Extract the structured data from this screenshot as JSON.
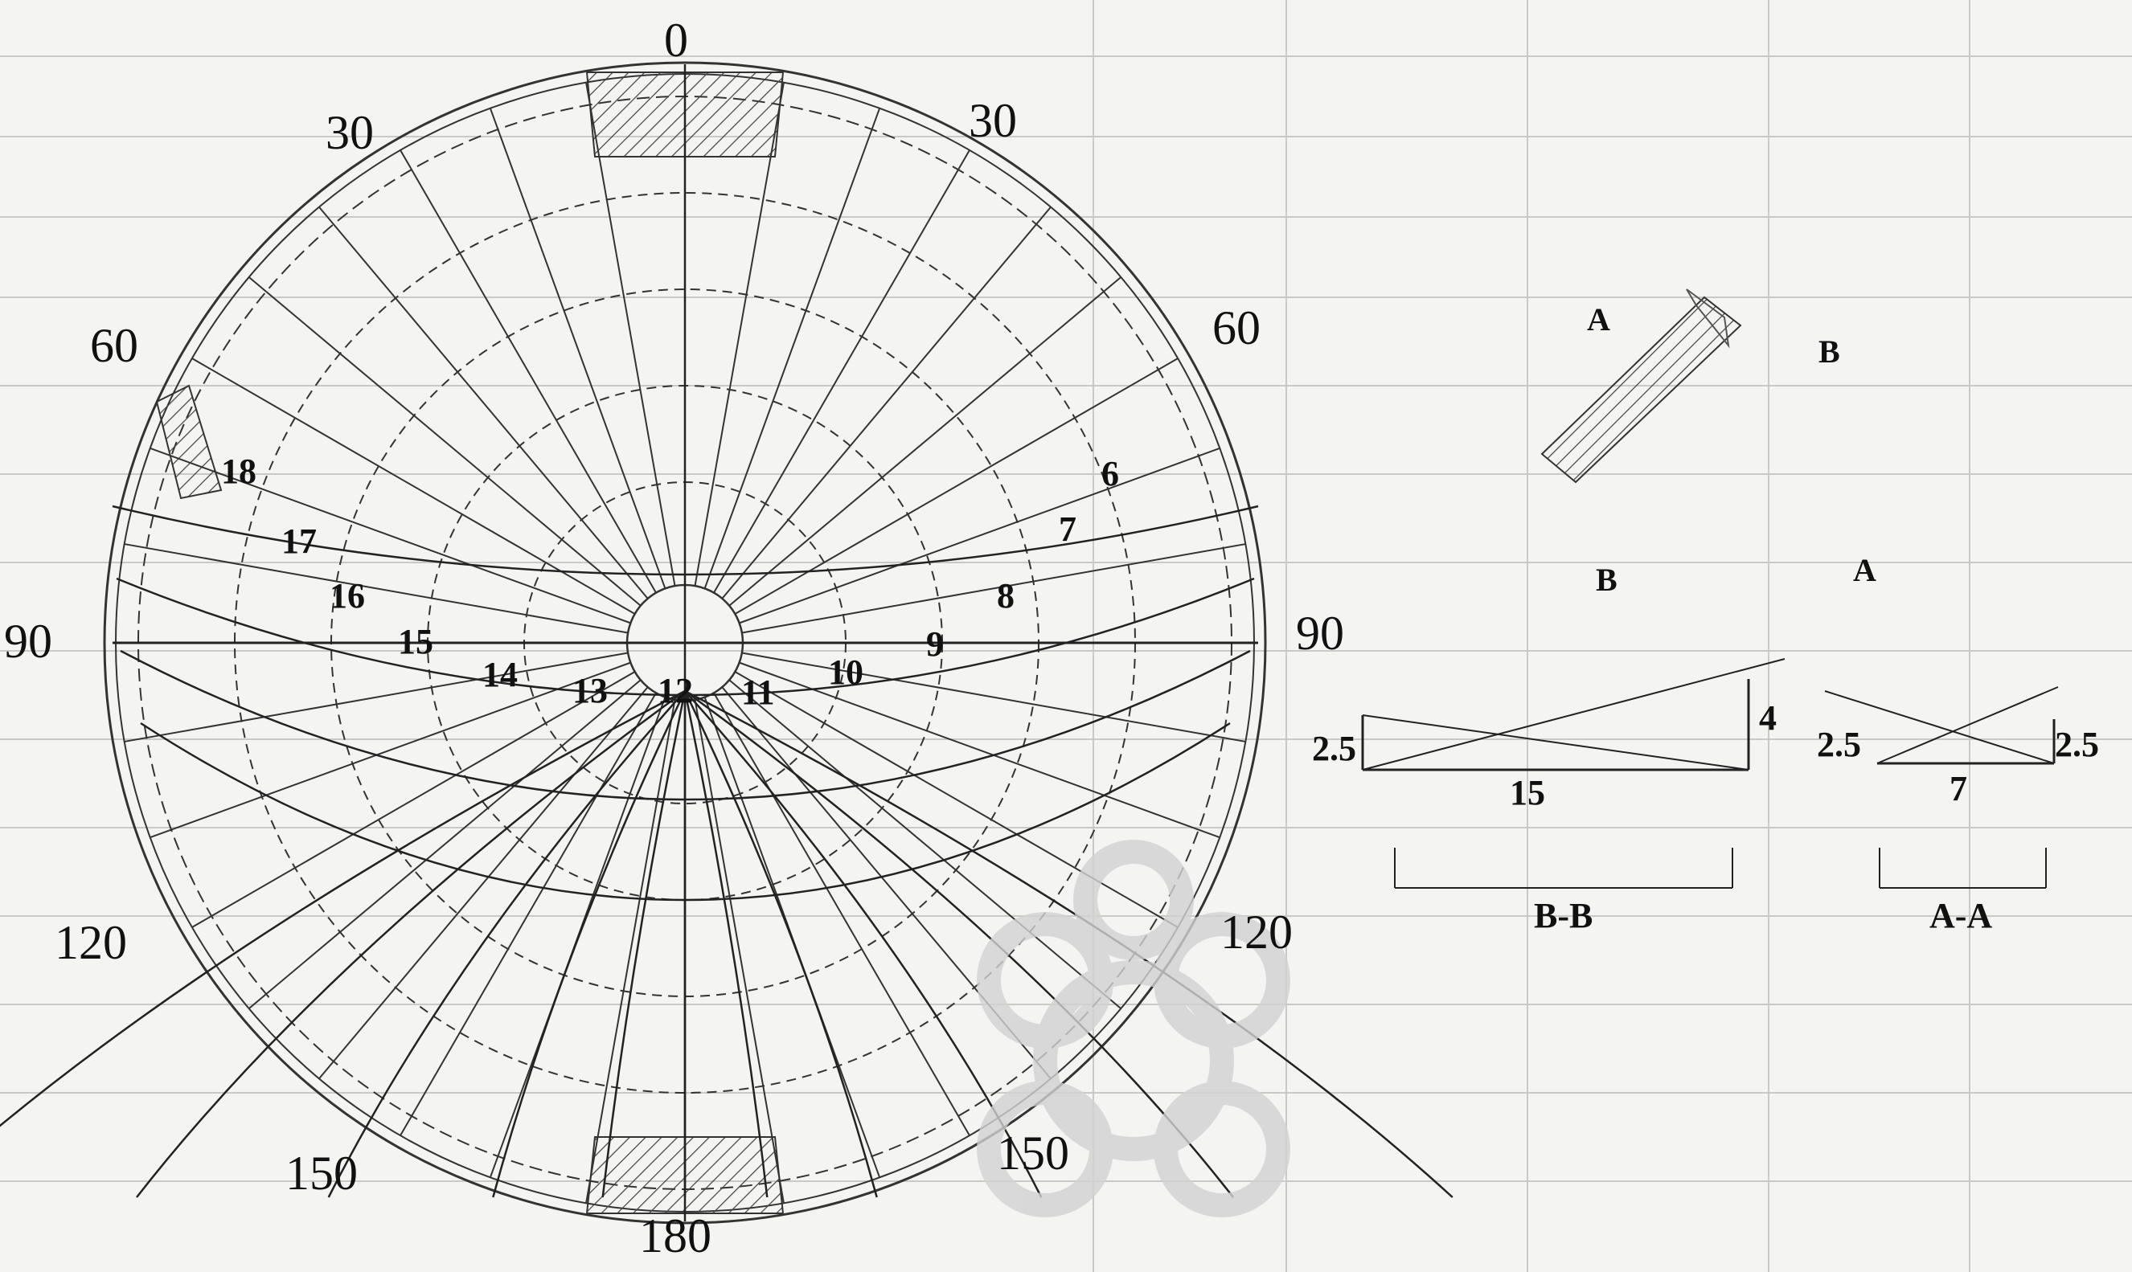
{
  "sun_path": {
    "angles": {
      "a0": "0",
      "a30_left": "30",
      "a30_right": "30",
      "a60_left": "60",
      "a60_right": "60",
      "a90_left": "90",
      "a90_right": "90",
      "a120_left": "120",
      "a120_right": "120",
      "a150_left": "150",
      "a150_right": "150",
      "a180": "180"
    },
    "hours": {
      "h6": "6",
      "h7": "7",
      "h8": "8",
      "h9": "9",
      "h10": "10",
      "h11": "11",
      "h12": "12",
      "h13": "13",
      "h14": "14",
      "h15": "15",
      "h16": "16",
      "h17": "17",
      "h18": "18"
    }
  },
  "shading_device": {
    "plan_label_a_top": "A",
    "plan_label_b_top": "B",
    "plan_label_b_bottom": "B",
    "plan_label_a_bottom": "A",
    "section_bb": {
      "title": "B-B",
      "left_height": "2.5",
      "right_height": "4",
      "width": "15"
    },
    "section_aa": {
      "title": "A-A",
      "left_height": "2.5",
      "right_height": "2.5",
      "width": "7"
    }
  }
}
